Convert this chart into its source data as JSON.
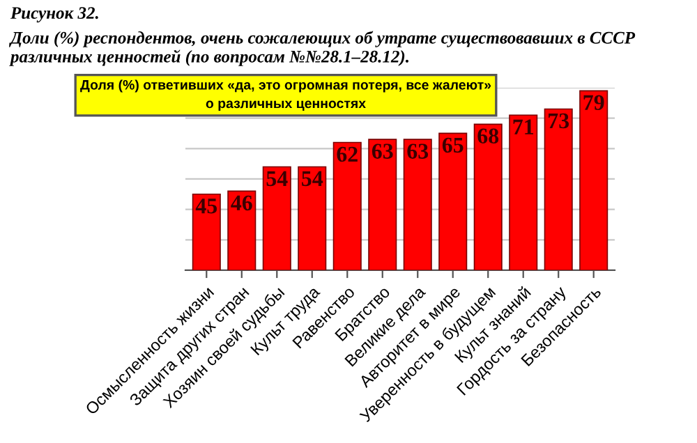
{
  "chart_data": {
    "type": "bar",
    "title": "Рисунок 32.",
    "subtitle": "Доли (%) респондентов, очень сожалеющих об утрате существовавших в СССР различных ценностей (по вопросам №№28.1–28.12).",
    "annotations": [
      "Доля (%) ответивших «да, это огромная потеря, все жалеют»\nо различных ценностях"
    ],
    "categories": [
      "Осмысленность жизни",
      "Защита других стран",
      "Хозяин своей судьбы",
      "Культ труда",
      "Равенство",
      "Братство",
      "Великие дела",
      "Авторитет в мире",
      "Уверенность в будущем",
      "Культ знаний",
      "Гордость за страну",
      "Безопасность"
    ],
    "values": [
      45,
      46,
      54,
      54,
      62,
      63,
      63,
      65,
      68,
      71,
      73,
      79
    ],
    "color": "#ff0000",
    "data_labels": true,
    "ylim": [
      20,
      80
    ],
    "yticks": [
      {
        "value": 30,
        "label": null
      },
      {
        "value": 40,
        "label": null
      },
      {
        "value": 50,
        "label": null
      },
      {
        "value": 60,
        "label": null
      },
      {
        "value": 70,
        "label": null
      },
      {
        "value": 80,
        "label": null
      }
    ],
    "grid": "y",
    "tick_labels": "x"
  }
}
